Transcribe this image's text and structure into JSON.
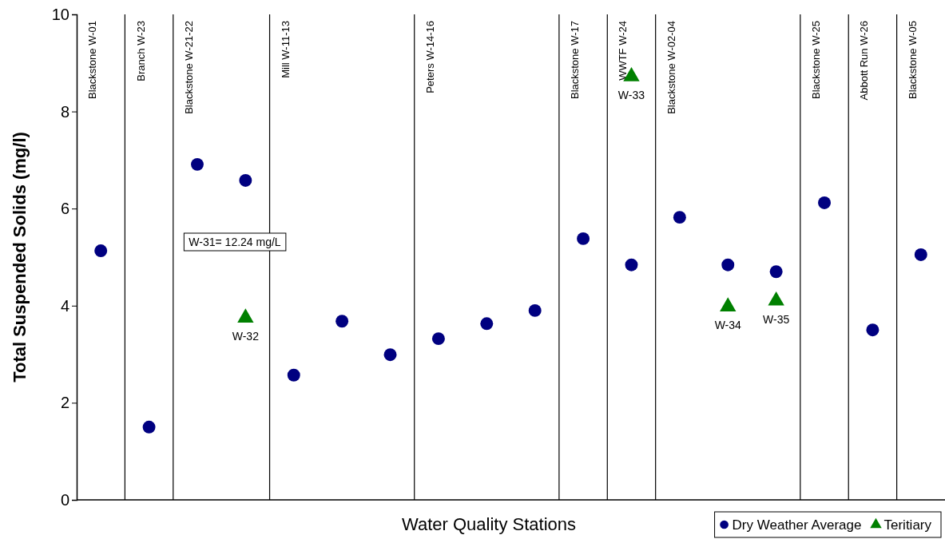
{
  "chart_data": {
    "type": "scatter",
    "xlabel": "Water Quality Stations",
    "ylabel": "Total Suspended Solids  (mg/l)",
    "categories": [
      "Blackstone W-01",
      "Branch W-23",
      "Blackstone W-21-22",
      null,
      "Mill W-11-13",
      null,
      null,
      "Peters W-14-16",
      null,
      null,
      "Blackstone W-17",
      "WWTF W-24",
      "Blackstone W-02-04",
      null,
      null,
      "Blackstone W-25",
      "Abbott Run W-26",
      "Blackstone W-05"
    ],
    "ylim": [
      0,
      10
    ],
    "yticks": [
      0,
      2,
      4,
      6,
      8,
      10
    ],
    "grid": false,
    "legend": "bottom right",
    "series": [
      {
        "name": "Dry Weather Average",
        "color": "#000080",
        "marker": "circle",
        "values": [
          5.13,
          1.5,
          6.91,
          6.58,
          2.57,
          3.68,
          2.99,
          3.32,
          3.63,
          3.9,
          5.38,
          4.84,
          5.82,
          4.84,
          4.7,
          6.12,
          3.5,
          5.05
        ]
      },
      {
        "name": "Teritiary",
        "color": "#008000",
        "marker": "triangle",
        "values": [
          null,
          null,
          null,
          3.75,
          null,
          null,
          null,
          null,
          null,
          null,
          null,
          8.72,
          null,
          3.98,
          4.1,
          null,
          null,
          null
        ]
      }
    ],
    "annotations": [
      "W-31= 12.24 mg/L",
      {
        "text": "W-32",
        "y": 3.75
      },
      {
        "text": "W-33",
        "y": 8.72
      },
      {
        "text": "W-34",
        "y": 3.98
      },
      {
        "text": "W-35",
        "y": 4.1
      }
    ]
  }
}
